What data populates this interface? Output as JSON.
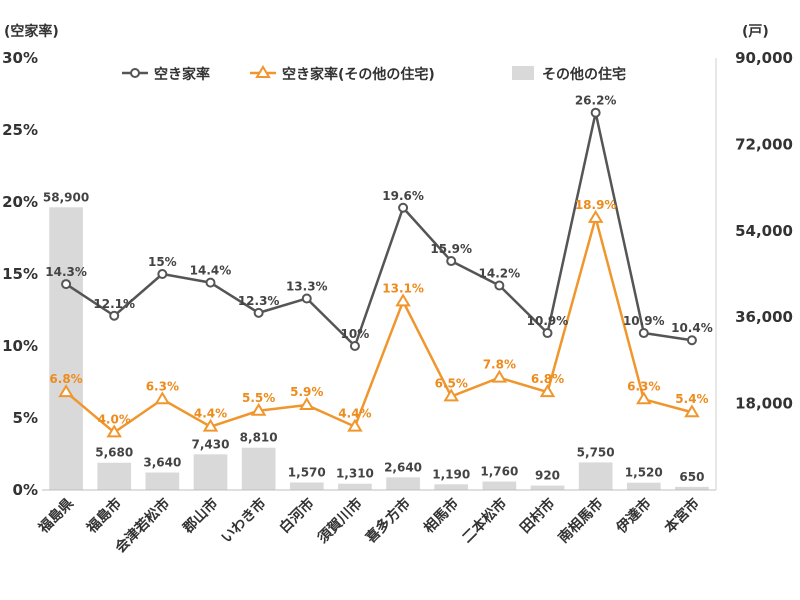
{
  "chart_data": {
    "type": "bar",
    "left_axis_unit": "(空家率)",
    "right_axis_unit": "(戸)",
    "left_ticks": [
      "0%",
      "5%",
      "10%",
      "15%",
      "20%",
      "25%",
      "30%"
    ],
    "right_ticks": [
      "18,000",
      "36,000",
      "54,000",
      "72,000",
      "90,000"
    ],
    "ylim_left": [
      0,
      30
    ],
    "ylim_right": [
      0,
      90000
    ],
    "grid": false,
    "legend_position": "top",
    "categories": [
      "福島県",
      "福島市",
      "会津若松市",
      "郡山市",
      "いわき市",
      "白河市",
      "須賀川市",
      "喜多方市",
      "相馬市",
      "二本松市",
      "田村市",
      "南相馬市",
      "伊達市",
      "本宮市"
    ],
    "series": [
      {
        "name": "空き家率",
        "type": "line",
        "axis": "left",
        "color": "#555555",
        "values": [
          14.3,
          12.1,
          15,
          14.4,
          12.3,
          13.3,
          10,
          19.6,
          15.9,
          14.2,
          10.9,
          26.2,
          10.9,
          10.4
        ],
        "labels": [
          "14.3%",
          "12.1%",
          "15%",
          "14.4%",
          "12.3%",
          "13.3%",
          "10%",
          "19.6%",
          "15.9%",
          "14.2%",
          "10.9%",
          "26.2%",
          "10.9%",
          "10.4%"
        ]
      },
      {
        "name": "空き家率(その他の住宅)",
        "type": "line",
        "axis": "left",
        "color": "#f0962c",
        "values": [
          6.8,
          4.0,
          6.3,
          4.4,
          5.5,
          5.9,
          4.4,
          13.1,
          6.5,
          7.8,
          6.8,
          18.9,
          6.3,
          5.4
        ],
        "labels": [
          "6.8%",
          "4.0%",
          "6.3%",
          "4.4%",
          "5.5%",
          "5.9%",
          "4.4%",
          "13.1%",
          "6.5%",
          "7.8%",
          "6.8%",
          "18.9%",
          "6.3%",
          "5.4%"
        ]
      },
      {
        "name": "その他の住宅",
        "type": "bar",
        "axis": "right",
        "color": "#d9d9d9",
        "values": [
          58900,
          5680,
          3640,
          7430,
          8810,
          1570,
          1310,
          2640,
          1190,
          1760,
          920,
          5750,
          1520,
          650
        ],
        "labels": [
          "58,900",
          "5,680",
          "3,640",
          "7,430",
          "8,810",
          "1,570",
          "1,310",
          "2,640",
          "1,190",
          "1,760",
          "920",
          "5,750",
          "1,520",
          "650"
        ]
      }
    ]
  }
}
